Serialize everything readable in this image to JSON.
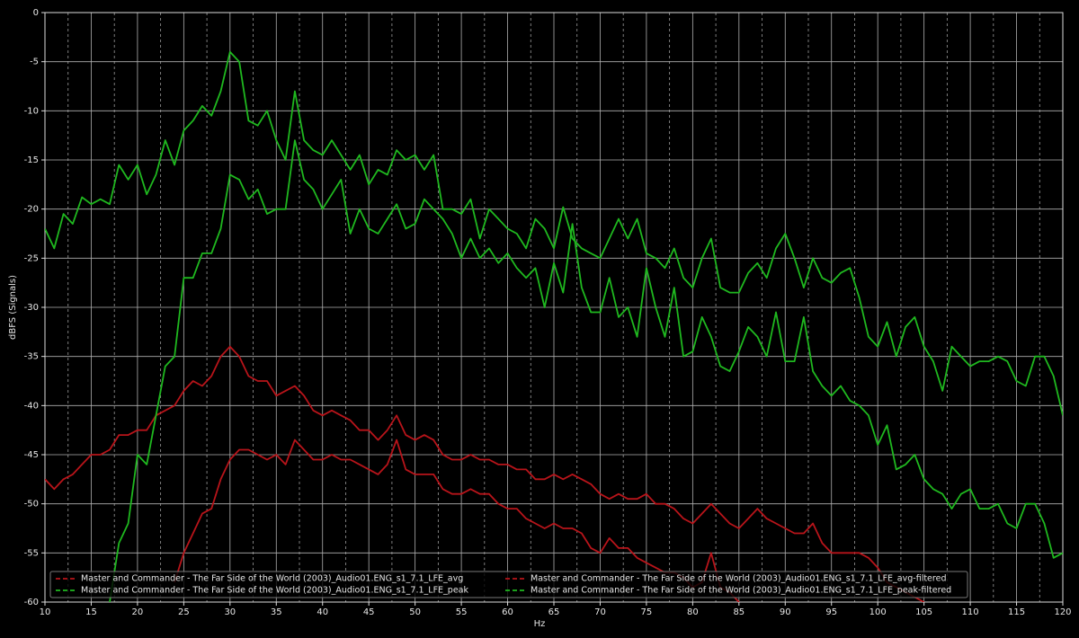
{
  "chart_data": {
    "type": "line",
    "x_label": "Hz",
    "y_label": "dBFS (Signals)",
    "x": [
      10,
      11,
      12,
      13,
      14,
      15,
      16,
      17,
      18,
      19,
      20,
      21,
      22,
      23,
      24,
      25,
      26,
      27,
      28,
      29,
      30,
      31,
      32,
      33,
      34,
      35,
      36,
      37,
      38,
      39,
      40,
      41,
      42,
      43,
      44,
      45,
      46,
      47,
      48,
      49,
      50,
      51,
      52,
      53,
      54,
      55,
      56,
      57,
      58,
      59,
      60,
      61,
      62,
      63,
      64,
      65,
      66,
      67,
      68,
      69,
      70,
      71,
      72,
      73,
      74,
      75,
      76,
      77,
      78,
      79,
      80,
      81,
      82,
      83,
      84,
      85,
      86,
      87,
      88,
      89,
      90,
      91,
      92,
      93,
      94,
      95,
      96,
      97,
      98,
      99,
      100,
      101,
      102,
      103,
      104,
      105,
      106,
      107,
      108,
      109,
      110,
      111,
      112,
      113,
      114,
      115,
      116,
      117,
      118,
      119,
      120
    ],
    "xlim": [
      10,
      120
    ],
    "ylim": [
      -60,
      0
    ],
    "xticks": [
      10,
      15,
      20,
      25,
      30,
      35,
      40,
      45,
      50,
      55,
      60,
      65,
      70,
      75,
      80,
      85,
      90,
      95,
      100,
      105,
      110,
      115,
      120
    ],
    "yticks": [
      0,
      -5,
      -10,
      -15,
      -20,
      -25,
      -30,
      -35,
      -40,
      -45,
      -50,
      -55,
      -60
    ],
    "xminorticks": [
      12.5,
      17.5,
      22.5,
      27.5,
      32.5,
      37.5,
      42.5,
      47.5,
      52.5,
      57.5,
      62.5,
      67.5,
      72.5,
      77.5,
      82.5,
      87.5,
      92.5,
      97.5,
      102.5,
      107.5,
      112.5,
      117.5
    ],
    "grid": true,
    "legend": "lower left",
    "series": [
      {
        "name": "Master and Commander - The Far Side of the World (2003)_Audio01.ENG_s1_7.1_LFE_avg",
        "color": "#b8141a",
        "values": [
          -47.5,
          -48.5,
          -47.5,
          -47,
          -46,
          -45,
          -45,
          -44.5,
          -43,
          -43,
          -42.5,
          -42.5,
          -41,
          -40.5,
          -40,
          -38.5,
          -37.5,
          -38,
          -37,
          -35,
          -34,
          -35,
          -37,
          -37.5,
          -37.5,
          -39,
          -38.5,
          -38,
          -39,
          -40.5,
          -41,
          -40.5,
          -41,
          -41.5,
          -42.5,
          -42.5,
          -43.5,
          -42.5,
          -41,
          -43,
          -43.5,
          -43,
          -43.5,
          -45,
          -45.5,
          -45.5,
          -45,
          -45.5,
          -45.5,
          -46,
          -46,
          -46.5,
          -46.5,
          -47.5,
          -47.5,
          -47,
          -47.5,
          -47,
          -47.5,
          -48,
          -49,
          -49.5,
          -49,
          -49.5,
          -49.5,
          -49,
          -50,
          -50,
          -50.5,
          -51.5,
          -52,
          -51,
          -50,
          -51,
          -52,
          -52.5,
          -51.5,
          -50.5,
          -51.5,
          -52,
          -52.5,
          -53,
          -53,
          -52,
          -54,
          -55,
          -55,
          -55,
          -55,
          -55.5,
          -56.5,
          -58,
          -58.5,
          -59,
          -59.5,
          -60,
          null,
          null,
          null,
          null,
          null,
          null,
          null,
          null,
          null,
          null,
          null,
          null,
          null,
          null,
          null
        ]
      },
      {
        "name": "Master and Commander - The Far Side of the World (2003)_Audio01.ENG_s1_7.1_LFE_avg-filtered",
        "color": "#b8141a",
        "values": [
          null,
          null,
          null,
          null,
          null,
          null,
          null,
          null,
          null,
          null,
          null,
          null,
          null,
          null,
          -58,
          -55,
          -53,
          -51,
          -50.5,
          -47.5,
          -45.5,
          -44.5,
          -44.5,
          -45,
          -45.5,
          -45,
          -46,
          -43.5,
          -44.5,
          -45.5,
          -45.5,
          -45,
          -45.5,
          -45.5,
          -46,
          -46.5,
          -47,
          -46,
          -43.5,
          -46.5,
          -47,
          -47,
          -47,
          -48.5,
          -49,
          -49,
          -48.5,
          -49,
          -49,
          -50,
          -50.5,
          -50.5,
          -51.5,
          -52,
          -52.5,
          -52,
          -52.5,
          -52.5,
          -53,
          -54.5,
          -55,
          -53.5,
          -54.5,
          -54.5,
          -55.5,
          -56,
          -56.5,
          -57,
          -57,
          -57.5,
          -58.5,
          -58,
          -55,
          -58.5,
          -59,
          -60,
          null,
          null,
          null,
          null,
          null,
          null,
          null,
          null,
          null,
          null,
          null,
          null,
          null,
          null,
          null,
          null,
          null,
          null,
          null,
          null,
          null,
          null,
          null,
          null,
          null,
          null,
          null,
          null,
          null,
          null,
          null,
          null,
          null,
          null,
          null
        ]
      },
      {
        "name": "Master and Commander - The Far Side of the World (2003)_Audio01.ENG_s1_7.1_LFE_peak",
        "color": "#1fb81f",
        "values": [
          -22,
          -24,
          -20.5,
          -21.5,
          -18.8,
          -19.5,
          -19,
          -19.5,
          -15.5,
          -17,
          -15.5,
          -18.5,
          -16.5,
          -13,
          -15.5,
          -12,
          -11,
          -9.5,
          -10.5,
          -8,
          -4,
          -5,
          -11,
          -11.5,
          -10,
          -13,
          -15,
          -8,
          -13,
          -14,
          -14.5,
          -13,
          -14.5,
          -16,
          -14.5,
          -17.5,
          -16,
          -16.5,
          -14,
          -15,
          -14.5,
          -16,
          -14.5,
          -20,
          -20,
          -20.5,
          -19,
          -23,
          -20,
          -21,
          -22,
          -22.5,
          -24,
          -21,
          -22,
          -24,
          -19.8,
          -23,
          -24,
          -24.5,
          -25,
          -23,
          -21,
          -23,
          -21,
          -24.5,
          -25,
          -26,
          -24,
          -27,
          -28,
          -25,
          -23,
          -28,
          -28.5,
          -28.5,
          -26.5,
          -25.5,
          -27,
          -24,
          -22.5,
          -25,
          -28,
          -25,
          -27,
          -27.5,
          -26.5,
          -26,
          -29,
          -33,
          -34,
          -31.5,
          -35,
          -32,
          -31,
          -34,
          -35.5,
          -38.5,
          -34,
          -35,
          -36,
          -35.5,
          -35.5,
          -35,
          -35.5,
          -37.5,
          -38,
          -35,
          -35,
          -37,
          -41
        ]
      },
      {
        "name": "Master and Commander - The Far Side of the World (2003)_Audio01.ENG_s1_7.1_LFE_peak-filtered",
        "color": "#1fb81f",
        "values": [
          null,
          null,
          null,
          null,
          null,
          null,
          null,
          -60,
          -54,
          -52,
          -45,
          -46,
          -41,
          -36,
          -35,
          -27,
          -27,
          -24.5,
          -24.5,
          -22,
          -16.5,
          -17,
          -19,
          -18,
          -20.5,
          -20,
          -20,
          -13,
          -17,
          -18,
          -20,
          -18.5,
          -17,
          -22.5,
          -20,
          -22,
          -22.5,
          -21,
          -19.5,
          -22,
          -21.5,
          -19,
          -20,
          -21,
          -22.5,
          -25,
          -23,
          -25,
          -24,
          -25.5,
          -24.5,
          -26,
          -27,
          -26,
          -30,
          -25.5,
          -28.5,
          -21.5,
          -28,
          -30.5,
          -30.5,
          -27,
          -31,
          -30,
          -33,
          -26,
          -30,
          -33,
          -28,
          -35,
          -34.5,
          -31,
          -33,
          -36,
          -36.5,
          -34.5,
          -32,
          -33,
          -35,
          -30.5,
          -35.5,
          -35.5,
          -31,
          -36.5,
          -38,
          -39,
          -38,
          -39.5,
          -40,
          -41,
          -44,
          -42,
          -46.5,
          -46,
          -45,
          -47.5,
          -48.5,
          -49,
          -50.5,
          -49,
          -48.5,
          -50.5,
          -50.5,
          -50,
          -52,
          -52.5,
          -50,
          -50,
          -52,
          -55.5,
          -55
        ]
      }
    ]
  }
}
